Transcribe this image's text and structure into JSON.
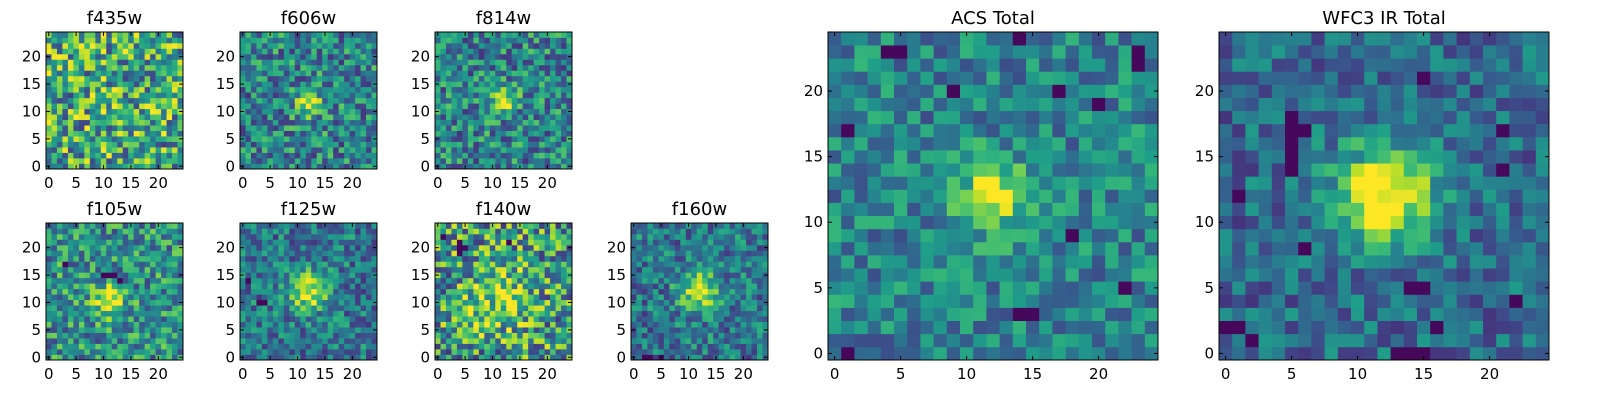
{
  "chart_data": [
    {
      "type": "heatmap",
      "title": "f435w",
      "colormap": "viridis",
      "xlim": [
        0,
        24
      ],
      "ylim": [
        0,
        24
      ],
      "xticks": [
        0,
        5,
        10,
        15,
        20
      ],
      "yticks": [
        0,
        5,
        10,
        15,
        20
      ],
      "grid_size": [
        25,
        25
      ],
      "source": {
        "center": [
          12,
          12
        ],
        "strength": 0.05,
        "sigma": 2.5
      },
      "noise": {
        "mean": 0.6,
        "amplitude": 0.4,
        "seed": 11
      },
      "dark_spots": []
    },
    {
      "type": "heatmap",
      "title": "f606w",
      "colormap": "viridis",
      "xlim": [
        0,
        24
      ],
      "ylim": [
        0,
        24
      ],
      "xticks": [
        0,
        5,
        10,
        15,
        20
      ],
      "yticks": [
        0,
        5,
        10,
        15,
        20
      ],
      "grid_size": [
        25,
        25
      ],
      "source": {
        "center": [
          12,
          11.5
        ],
        "strength": 0.55,
        "sigma": 1.6
      },
      "noise": {
        "mean": 0.45,
        "amplitude": 0.3,
        "seed": 23
      },
      "dark_spots": []
    },
    {
      "type": "heatmap",
      "title": "f814w",
      "colormap": "viridis",
      "xlim": [
        0,
        24
      ],
      "ylim": [
        0,
        24
      ],
      "xticks": [
        0,
        5,
        10,
        15,
        20
      ],
      "yticks": [
        0,
        5,
        10,
        15,
        20
      ],
      "grid_size": [
        25,
        25
      ],
      "source": {
        "center": [
          12,
          12
        ],
        "strength": 0.55,
        "sigma": 1.6
      },
      "noise": {
        "mean": 0.45,
        "amplitude": 0.3,
        "seed": 37
      },
      "dark_spots": []
    },
    {
      "type": "heatmap",
      "title": "f105w",
      "colormap": "viridis",
      "xlim": [
        0,
        24
      ],
      "ylim": [
        0,
        24
      ],
      "xticks": [
        0,
        5,
        10,
        15,
        20
      ],
      "yticks": [
        0,
        5,
        10,
        15,
        20
      ],
      "grid_size": [
        25,
        25
      ],
      "source": {
        "center": [
          11,
          10.5
        ],
        "strength": 0.5,
        "sigma": 2
      },
      "noise": {
        "mean": 0.5,
        "amplitude": 0.3,
        "seed": 41
      },
      "dark_spots": [
        [
          10,
          15
        ],
        [
          11,
          15
        ],
        [
          12,
          15
        ],
        [
          3,
          17
        ],
        [
          13,
          14
        ]
      ]
    },
    {
      "type": "heatmap",
      "title": "f125w",
      "colormap": "viridis",
      "xlim": [
        0,
        24
      ],
      "ylim": [
        0,
        24
      ],
      "xticks": [
        0,
        5,
        10,
        15,
        20
      ],
      "yticks": [
        0,
        5,
        10,
        15,
        20
      ],
      "grid_size": [
        25,
        25
      ],
      "source": {
        "center": [
          12,
          12
        ],
        "strength": 0.55,
        "sigma": 2.5
      },
      "noise": {
        "mean": 0.4,
        "amplitude": 0.25,
        "seed": 53
      },
      "dark_spots": [
        [
          3,
          10
        ],
        [
          4,
          10
        ],
        [
          1,
          14
        ]
      ]
    },
    {
      "type": "heatmap",
      "title": "f140w",
      "colormap": "viridis",
      "xlim": [
        0,
        24
      ],
      "ylim": [
        0,
        24
      ],
      "xticks": [
        0,
        5,
        10,
        15,
        20
      ],
      "yticks": [
        0,
        5,
        10,
        15,
        20
      ],
      "grid_size": [
        25,
        25
      ],
      "source": {
        "center": [
          11,
          11
        ],
        "strength": 0.3,
        "sigma": 4
      },
      "noise": {
        "mean": 0.55,
        "amplitude": 0.4,
        "seed": 67
      },
      "dark_spots": [
        [
          4,
          21
        ],
        [
          4,
          20
        ],
        [
          4,
          19
        ],
        [
          5,
          20
        ],
        [
          13,
          21
        ],
        [
          1,
          22
        ]
      ]
    },
    {
      "type": "heatmap",
      "title": "f160w",
      "colormap": "viridis",
      "xlim": [
        0,
        24
      ],
      "ylim": [
        0,
        24
      ],
      "xticks": [
        0,
        5,
        10,
        15,
        20
      ],
      "yticks": [
        0,
        5,
        10,
        15,
        20
      ],
      "grid_size": [
        25,
        25
      ],
      "source": {
        "center": [
          12,
          12
        ],
        "strength": 0.55,
        "sigma": 2.5
      },
      "noise": {
        "mean": 0.4,
        "amplitude": 0.25,
        "seed": 79
      },
      "dark_spots": [
        [
          2,
          0
        ],
        [
          3,
          0
        ],
        [
          5,
          0
        ]
      ]
    },
    {
      "type": "heatmap",
      "title": "ACS Total",
      "colormap": "viridis",
      "xlim": [
        0,
        24
      ],
      "ylim": [
        0,
        24
      ],
      "xticks": [
        0,
        5,
        10,
        15,
        20
      ],
      "yticks": [
        0,
        5,
        10,
        15,
        20
      ],
      "grid_size": [
        25,
        25
      ],
      "source": {
        "center": [
          12,
          12
        ],
        "strength": 0.55,
        "sigma": 1.8
      },
      "noise": {
        "mean": 0.45,
        "amplitude": 0.22,
        "seed": 97
      },
      "dark_spots": [
        [
          4,
          23
        ],
        [
          5,
          23
        ],
        [
          14,
          24
        ],
        [
          23,
          23
        ],
        [
          23,
          22
        ],
        [
          1,
          17
        ],
        [
          9,
          20
        ],
        [
          17,
          20
        ],
        [
          20,
          19
        ],
        [
          18,
          9
        ],
        [
          14,
          3
        ],
        [
          15,
          3
        ],
        [
          22,
          5
        ],
        [
          1,
          0
        ]
      ]
    },
    {
      "type": "heatmap",
      "title": "WFC3 IR Total",
      "colormap": "viridis",
      "xlim": [
        0,
        24
      ],
      "ylim": [
        0,
        24
      ],
      "xticks": [
        0,
        5,
        10,
        15,
        20
      ],
      "yticks": [
        0,
        5,
        10,
        15,
        20
      ],
      "grid_size": [
        25,
        25
      ],
      "source": {
        "center": [
          12,
          12
        ],
        "strength": 0.75,
        "sigma": 2.6
      },
      "noise": {
        "mean": 0.35,
        "amplitude": 0.2,
        "seed": 113
      },
      "dark_spots": [
        [
          5,
          18
        ],
        [
          5,
          17
        ],
        [
          5,
          16
        ],
        [
          5,
          15
        ],
        [
          5,
          14
        ],
        [
          6,
          17
        ],
        [
          15,
          21
        ],
        [
          21,
          17
        ],
        [
          21,
          14
        ],
        [
          14,
          5
        ],
        [
          15,
          5
        ],
        [
          13,
          0
        ],
        [
          14,
          0
        ],
        [
          15,
          0
        ],
        [
          0,
          2
        ],
        [
          1,
          2
        ],
        [
          2,
          1
        ],
        [
          6,
          8
        ],
        [
          1,
          12
        ],
        [
          16,
          2
        ],
        [
          22,
          4
        ]
      ]
    }
  ]
}
